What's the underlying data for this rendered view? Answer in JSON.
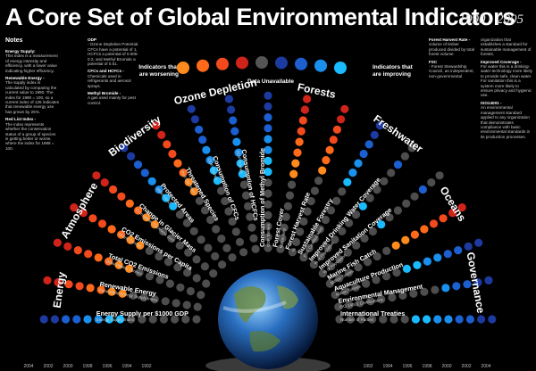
{
  "header": {
    "title": "A Core Set of Global Environmental Indicators",
    "years": "1990 - 2005"
  },
  "notes": {
    "heading": "Notes",
    "col1": [
      {
        "h": "Energy Supply:",
        "t": "This index is a measurement of energy intensity and efficiency, with a lower value indicating higher efficiency."
      },
      {
        "h": "Renewable Energy -",
        "t": "The supply index is calculated by comparing the current value to 1990. The index for 1990 = 100, so a current index of 125 indicates that renewable energy use has grown by 25%."
      },
      {
        "h": "Red List Index -",
        "t": "The index represents whether the conservation status of a group of species is getting better or worse, where the index for 1988 = 100."
      }
    ],
    "col2": [
      {
        "h": "ODP",
        "t": "- Ozone Depletion Potential. CFCs have a potential of 1, HCFCs a potential of 0.005-0.2, and Methyl Bromide a potential of 0.51."
      },
      {
        "h": "CFCs and HCFCs -",
        "t": "Chemicals used in refrigerants and aerosol sprays."
      },
      {
        "h": "Methyl Bromide -",
        "t": "A gas used mainly for pest control."
      }
    ],
    "col3": [
      {
        "h": "Forest Harvest Rate -",
        "t": "volume of timber produced divided by total forest volume"
      },
      {
        "h": "FSC",
        "t": "- Forest Stewardship Council, an independent, non-governmental"
      }
    ],
    "col4": [
      {
        "h": "",
        "t": "organization that establishes a standard for sustainable management of forests."
      },
      {
        "h": "Improved Coverage -",
        "t": "For water this is a drinking-water technology more likely to provide safe, clean water. For sanitation this is a system more likely to ensure privacy and hygienic use."
      },
      {
        "h": "ISO14001 -",
        "t": "An environmental management standard applied to any organization that demonstrates compliance with basic environmental standards in its production processes."
      }
    ]
  },
  "legend": {
    "worse": "Indicators that are worsening",
    "better": "Indicators that are improving",
    "unavailable": "Data Unavailable"
  },
  "categories": [
    "Energy",
    "Atmosphere",
    "Biodiversity",
    "Ozone Depletion",
    "Forests",
    "Freshwater",
    "Oceans",
    "Governance"
  ],
  "colors": {
    "worse": [
      "#ff8a1e",
      "#ff6a1a",
      "#f24a1c",
      "#d0231a"
    ],
    "better": [
      "#1abaff",
      "#1a90ee",
      "#1c5fd0",
      "#1c3aa0"
    ],
    "unavailable": "#555555",
    "outline": "#888888"
  },
  "year_ticks": [
    "2004",
    "2002",
    "2000",
    "1998",
    "1996",
    "1994",
    "1992",
    "1990",
    "1992",
    "1994",
    "1996",
    "1998",
    "2000",
    "2002",
    "2004"
  ],
  "indicators": [
    {
      "label": "Energy Supply per $1000 GDP",
      "sub": "Energy Supply Index"
    },
    {
      "label": "Renewable Energy",
      "sub": "Renewable Energy Supply Index"
    },
    {
      "label": "Total CO2 Emissions",
      "sub": "Billion Metric Tonnes"
    },
    {
      "label": "CO2 Emissions per Capita",
      "sub": "Metric Tonnes"
    },
    {
      "label": "Change in Glacier Mass",
      "sub": "Cumulative Thickness (cm)"
    },
    {
      "label": "Protected Areas",
      "sub": "Million km2"
    },
    {
      "label": "Threatened Species",
      "sub": "Red List Index"
    },
    {
      "label": "Consumption of CFCs",
      "sub": "ODP Tonnes"
    },
    {
      "label": "Consumption of HCFCs",
      "sub": "ODP Tonnes"
    },
    {
      "label": "Consumption of Methyl Bromide",
      "sub": "ODP Tonnes"
    },
    {
      "label": "Forest Cover",
      "sub": "Million km2"
    },
    {
      "label": "Forest Harvest Rate",
      "sub": "%"
    },
    {
      "label": "Sustainable Forestry",
      "sub": "FSC Certified Area"
    },
    {
      "label": "Improved Drinking Water Coverage",
      "sub": "% of Population"
    },
    {
      "label": "Improved Sanitation Coverage",
      "sub": "% of Population"
    },
    {
      "label": "Marine Fish Catch",
      "sub": "Million Tonnes"
    },
    {
      "label": "Aquaculture Production",
      "sub": "Million Tonnes"
    },
    {
      "label": "Environmental Management",
      "sub": "ISO 14001 Certifications"
    },
    {
      "label": "International Treaties",
      "sub": "Number of Parties"
    }
  ],
  "patterns": [
    "uuuuuuubbbbbbbb",
    "uuuuuuuwwwwwwww",
    "uuuuuuuwwwwwwww",
    "uuuuuuuwwwwwwww",
    "uuuuuuuwwwwwwww",
    "uuuuuuubbbbbbbb",
    "uuuuuuuwwwwwwww",
    "uuuuuuubbbbbbbb",
    "uuuuuuubbbbbbbb",
    "uuuuuuubbbbbbbb",
    "uuuuuuuwwwwwwww",
    "uuuuuuuuwwwwwww",
    "uuuuuuuubbbbbbb",
    "uuuuuuubuuuubuu",
    "uuuuuuubuuuubuu",
    "uuuuuuuwwwwwwww",
    "uuuuuuubbbbbbbb",
    "uuuuuuuuuubbbbb",
    "uuuuuuubbbbbbbb"
  ]
}
